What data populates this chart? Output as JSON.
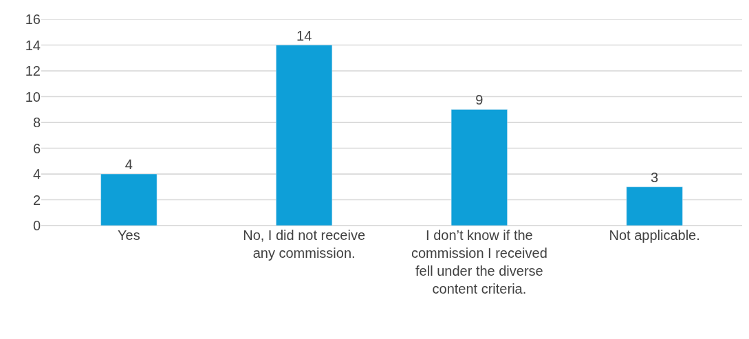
{
  "chart_data": {
    "type": "bar",
    "categories": [
      "Yes",
      "No, I did not receive any commission.",
      "I don’t know if the commission I received fell under the diverse content criteria.",
      "Not applicable."
    ],
    "values": [
      4,
      14,
      9,
      3
    ],
    "color": "#0e9fd8",
    "ylim": [
      0,
      16
    ],
    "yticks": [
      0,
      2,
      4,
      6,
      8,
      10,
      12,
      14,
      16
    ],
    "grid": "y",
    "data_labels": true
  }
}
